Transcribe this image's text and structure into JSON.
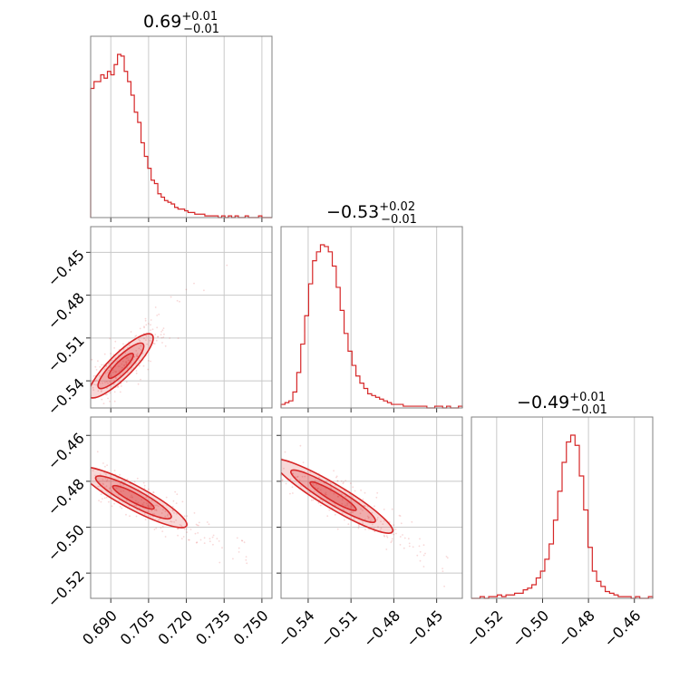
{
  "chart_data": {
    "type": "corner",
    "color": "#d62728",
    "parameters": [
      {
        "title": {
          "median": "0.69",
          "plus": "+0.01",
          "minus": "−0.01"
        },
        "range": [
          0.682,
          0.754
        ],
        "ticks": [
          0.69,
          0.705,
          0.72,
          0.735,
          0.75
        ],
        "ticklabels": [
          "0.690",
          "0.705",
          "0.720",
          "0.735",
          "0.750"
        ]
      },
      {
        "title": {
          "median": "−0.53",
          "plus": "+0.02",
          "minus": "−0.01"
        },
        "range": [
          -0.559,
          -0.432
        ],
        "ticks": [
          -0.54,
          -0.51,
          -0.48,
          -0.45
        ],
        "ticklabels": [
          "−0.54",
          "−0.51",
          "−0.48",
          "−0.45"
        ]
      },
      {
        "title": {
          "median": "−0.49",
          "plus": "+0.01",
          "minus": "−0.01"
        },
        "range": [
          -0.531,
          -0.452
        ],
        "ticks": [
          -0.52,
          -0.5,
          -0.48,
          -0.46
        ],
        "ticklabels": [
          "−0.52",
          "−0.50",
          "−0.48",
          "−0.46"
        ]
      }
    ],
    "histograms": [
      {
        "param": 0,
        "counts": [
          76,
          80,
          80,
          84,
          82,
          86,
          84,
          90,
          96,
          95,
          86,
          80,
          72,
          62,
          56,
          44,
          36,
          29,
          22,
          20,
          14,
          12,
          10,
          9,
          8,
          6,
          5,
          5,
          4,
          3,
          3,
          2,
          2,
          2,
          1,
          1,
          1,
          1,
          0,
          1,
          0,
          1,
          0,
          1,
          0,
          0,
          1,
          0,
          0,
          0,
          1,
          0,
          0,
          0
        ]
      },
      {
        "param": 1,
        "counts": [
          2,
          3,
          4,
          9,
          20,
          36,
          52,
          70,
          83,
          88,
          92,
          91,
          88,
          80,
          68,
          55,
          42,
          32,
          24,
          18,
          14,
          11,
          8,
          7,
          6,
          5,
          4,
          3,
          2,
          2,
          2,
          1,
          1,
          1,
          1,
          1,
          1,
          0,
          0,
          1,
          1,
          0,
          1,
          0,
          0,
          1
        ]
      },
      {
        "param": 2,
        "counts": [
          0,
          0,
          1,
          0,
          1,
          1,
          2,
          1,
          2,
          2,
          3,
          3,
          5,
          6,
          8,
          12,
          16,
          23,
          32,
          46,
          63,
          80,
          92,
          96,
          90,
          72,
          52,
          30,
          16,
          10,
          7,
          4,
          3,
          2,
          1,
          1,
          1,
          0,
          1,
          0,
          0,
          1
        ]
      }
    ],
    "joints": [
      {
        "x_param": 0,
        "y_param": 1,
        "relation": "positive",
        "core_x": [
          0.684,
          0.704
        ],
        "core_y": [
          -0.547,
          -0.512
        ]
      },
      {
        "x_param": 0,
        "y_param": 2,
        "relation": "negative",
        "core_x": [
          0.682,
          0.716
        ],
        "core_y": [
          -0.497,
          -0.477
        ]
      },
      {
        "x_param": 1,
        "y_param": 2,
        "relation": "negative",
        "core_x": [
          -0.556,
          -0.489
        ],
        "core_y": [
          -0.499,
          -0.474
        ]
      }
    ]
  }
}
